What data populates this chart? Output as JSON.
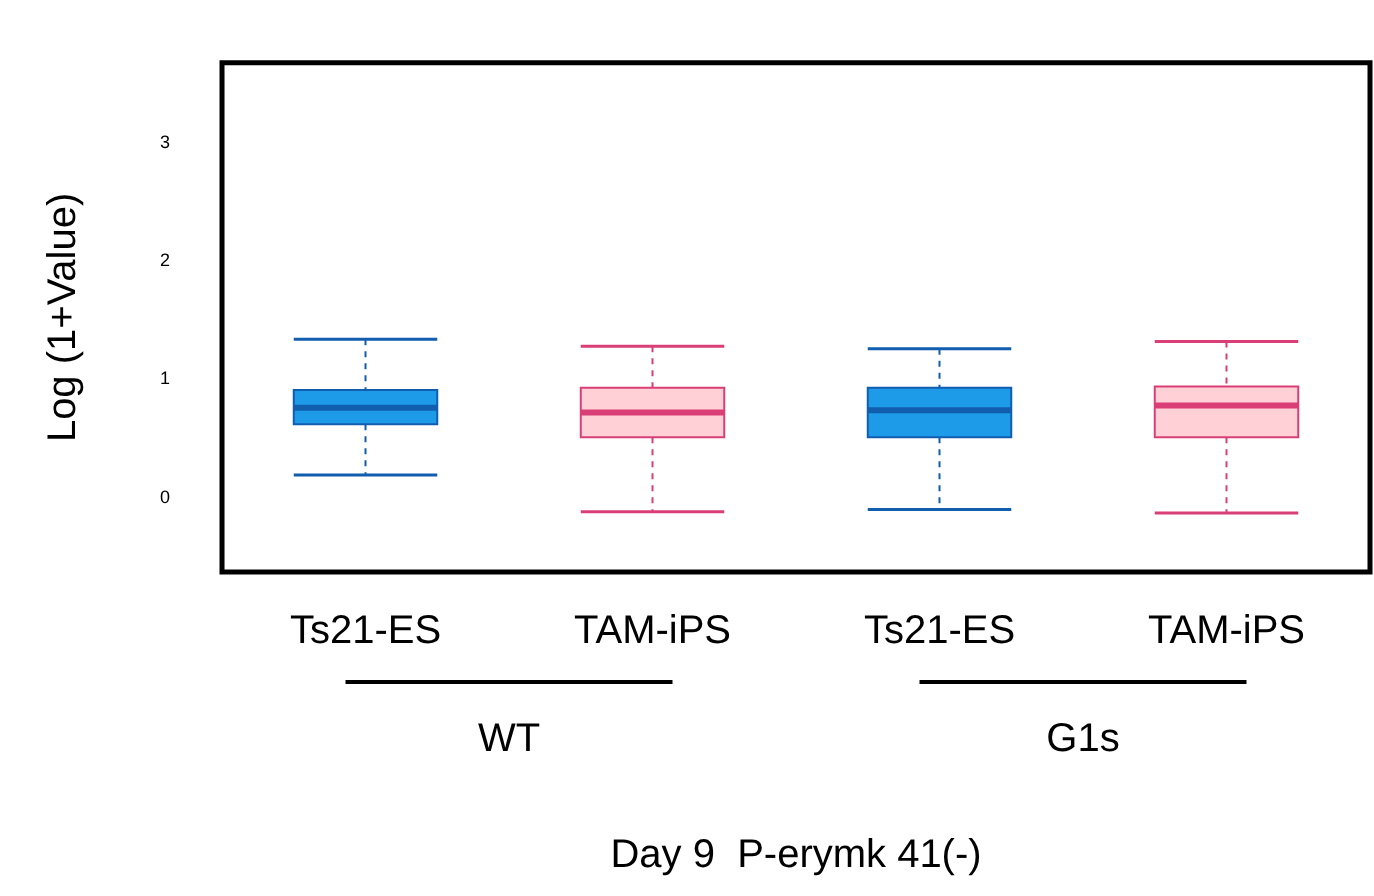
{
  "chart_data": {
    "type": "box",
    "xlabel": "Day 9  P-erymk 41(-)",
    "ylabel": "Log (1+Value)",
    "categories": [
      "Ts21-ES",
      "TAM-iPS",
      "Ts21-ES",
      "TAM-iPS"
    ],
    "boxes": [
      {
        "low": 0.19,
        "q1": 0.62,
        "median": 0.76,
        "q3": 0.91,
        "high": 1.34
      },
      {
        "low": -0.12,
        "q1": 0.51,
        "median": 0.72,
        "q3": 0.93,
        "high": 1.28
      },
      {
        "low": -0.1,
        "q1": 0.51,
        "median": 0.74,
        "q3": 0.93,
        "high": 1.26
      },
      {
        "low": -0.13,
        "q1": 0.51,
        "median": 0.78,
        "q3": 0.94,
        "high": 1.32
      }
    ],
    "colors": [
      "#1e9be8",
      "#ffd1d6",
      "#1e9be8",
      "#ffd1d6"
    ],
    "annotations": [
      "WT",
      "G1s"
    ],
    "ylim": [
      -0.63,
      3.68
    ],
    "yticks": [
      0,
      1,
      2,
      3
    ],
    "grid": false
  }
}
